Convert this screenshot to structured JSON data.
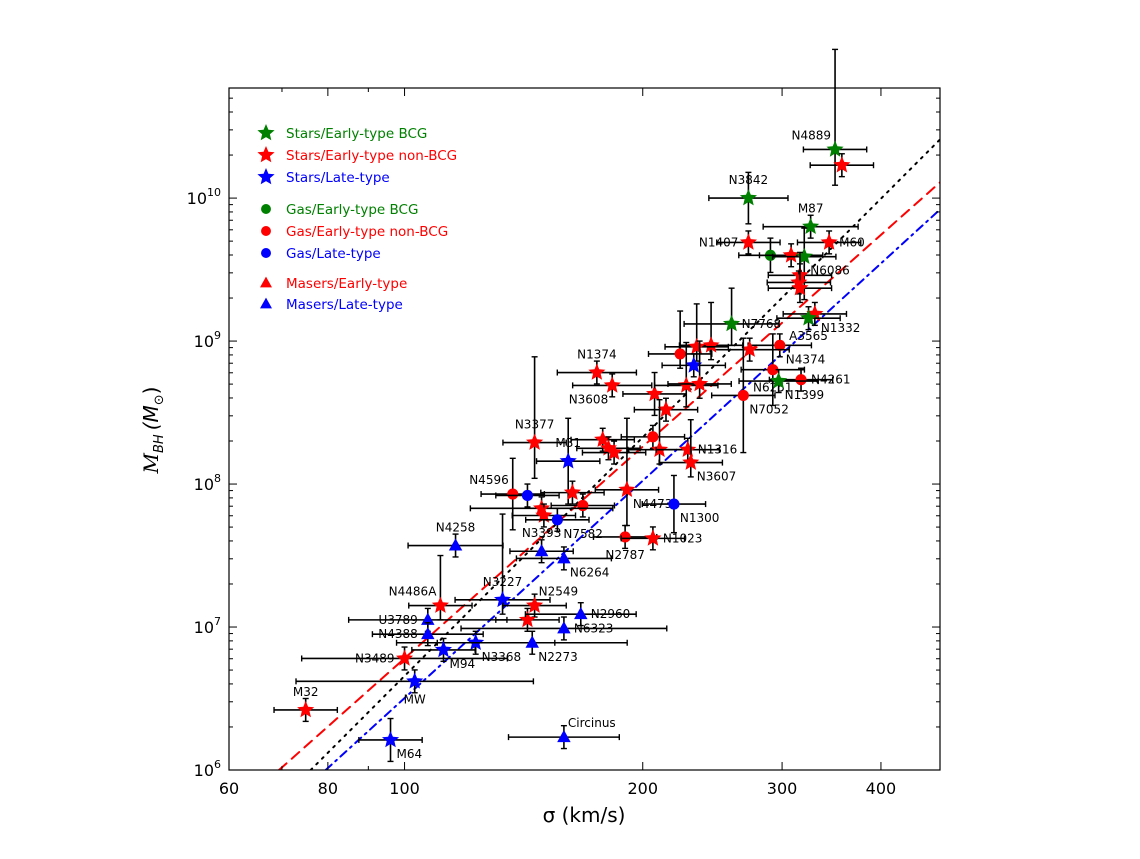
{
  "chart_data": {
    "type": "scatter",
    "title": "",
    "xlabel": "σ (km/s)",
    "ylabel_main": "M",
    "ylabel_sub": "BH",
    "ylabel_unit": "(M",
    "ylabel_unit_close": ")",
    "ylabel_sun": "⊙",
    "xscale": "log",
    "yscale": "log",
    "xlim": [
      60,
      475
    ],
    "ylim_log10": [
      6,
      10.77
    ],
    "x_ticks": [
      60,
      80,
      100,
      200,
      300,
      400
    ],
    "x_tick_labels": [
      "60",
      "80",
      "100",
      "200",
      "300",
      "400"
    ],
    "y_ticks_log10": [
      6,
      7,
      8,
      9,
      10
    ],
    "y_tick_base": "10",
    "y_tick_exps": [
      "6",
      "7",
      "8",
      "9",
      "10"
    ],
    "grid": false,
    "legend_placement": "top-left",
    "colors": {
      "green": "#008000",
      "red": "#ff0000",
      "blue": "#0000ff"
    },
    "legend": [
      {
        "label": "Stars/Early-type BCG",
        "marker": "star",
        "color": "#008000"
      },
      {
        "label": "Stars/Early-type non-BCG",
        "marker": "star",
        "color": "#ff0000"
      },
      {
        "label": "Stars/Late-type",
        "marker": "star",
        "color": "#0000ff"
      },
      {
        "label": "Gas/Early-type BCG",
        "marker": "circle",
        "color": "#008000"
      },
      {
        "label": "Gas/Early-type non-BCG",
        "marker": "circle",
        "color": "#ff0000"
      },
      {
        "label": "Gas/Late-type",
        "marker": "circle",
        "color": "#0000ff"
      },
      {
        "label": "Masers/Early-type",
        "marker": "triangle",
        "color": "#ff0000"
      },
      {
        "label": "Masers/Late-type",
        "marker": "triangle",
        "color": "#0000ff"
      }
    ],
    "fits": [
      {
        "name": "early-type fit",
        "style": "dashed",
        "color": "#ff0000",
        "x": [
          69.4,
          475
        ],
        "logM": [
          6.0,
          10.11
        ]
      },
      {
        "name": "all fit",
        "style": "dotted",
        "color": "#000000",
        "x": [
          76.1,
          475
        ],
        "logM": [
          6.0,
          10.41
        ]
      },
      {
        "name": "late-type fit",
        "style": "dashdot",
        "color": "#0000ff",
        "x": [
          79.5,
          475
        ],
        "logM": [
          6.0,
          9.92
        ]
      }
    ],
    "default_err": {
      "sigma_dex": 0.04,
      "logM_dex": 0.08
    },
    "points": [
      {
        "label": "N4889",
        "sigma": 350,
        "logM": 10.34,
        "marker": "star",
        "color": "#008000",
        "pos": "top-left",
        "yerr": [
          0.7,
          0.25
        ]
      },
      {
        "label": "",
        "sigma": 357,
        "logM": 10.23,
        "marker": "star",
        "color": "#ff0000"
      },
      {
        "label": "N3842",
        "sigma": 272,
        "logM": 10.0,
        "marker": "star",
        "color": "#008000",
        "pos": "top",
        "yerr": [
          0.18,
          0.18
        ],
        "xerr": 0.05
      },
      {
        "label": "M87",
        "sigma": 326,
        "logM": 9.8,
        "marker": "star",
        "color": "#008000",
        "pos": "top",
        "xerr": 0.06
      },
      {
        "label": "N1407",
        "sigma": 272,
        "logM": 9.69,
        "marker": "star",
        "color": "#ff0000",
        "pos": "left"
      },
      {
        "label": "M60",
        "sigma": 344,
        "logM": 9.69,
        "marker": "star",
        "color": "#ff0000",
        "pos": "right"
      },
      {
        "label": "",
        "sigma": 290,
        "logM": 9.6,
        "marker": "circle",
        "color": "#008000",
        "yerr": [
          0.12,
          0.12
        ]
      },
      {
        "label": "",
        "sigma": 308,
        "logM": 9.6,
        "marker": "star",
        "color": "#ff0000"
      },
      {
        "label": "N6086",
        "sigma": 320,
        "logM": 9.59,
        "marker": "star",
        "color": "#008000",
        "pos": "bottom-right",
        "yerr": [
          0.2,
          0.3
        ]
      },
      {
        "label": "",
        "sigma": 316,
        "logM": 9.46,
        "marker": "star",
        "color": "#ff0000"
      },
      {
        "label": "",
        "sigma": 315,
        "logM": 9.41,
        "marker": "star",
        "color": "#ff0000"
      },
      {
        "label": "",
        "sigma": 316,
        "logM": 9.37,
        "marker": "star",
        "color": "#ff0000",
        "yerr": [
          0.25,
          0.1
        ]
      },
      {
        "label": "N7768",
        "sigma": 259,
        "logM": 9.12,
        "marker": "star",
        "color": "#008000",
        "pos": "right",
        "yerr": [
          0.25,
          0.15
        ],
        "xerr": 0.06
      },
      {
        "label": "N1332",
        "sigma": 330,
        "logM": 9.19,
        "marker": "star",
        "color": "#ff0000",
        "pos": "bottom-right"
      },
      {
        "label": "A3565",
        "sigma": 324,
        "logM": 9.16,
        "marker": "star",
        "color": "#008000",
        "pos": "bottom"
      },
      {
        "label": "N4374",
        "sigma": 298,
        "logM": 8.97,
        "marker": "circle",
        "color": "#ff0000",
        "pos": "bottom-right"
      },
      {
        "label": "",
        "sigma": 273,
        "logM": 8.94,
        "marker": "star",
        "color": "#ff0000",
        "xerr": 0.05
      },
      {
        "label": "",
        "sigma": 244,
        "logM": 8.97,
        "marker": "star",
        "color": "#ff0000",
        "yerr": [
          0.3,
          0.1
        ]
      },
      {
        "label": "",
        "sigma": 234,
        "logM": 8.96,
        "marker": "star",
        "color": "#ff0000",
        "yerr": [
          0.3,
          0.1
        ]
      },
      {
        "label": "",
        "sigma": 223,
        "logM": 8.91,
        "marker": "circle",
        "color": "#ff0000",
        "yerr": [
          0.3,
          0.1
        ]
      },
      {
        "label": "",
        "sigma": 232,
        "logM": 8.83,
        "marker": "star",
        "color": "#0000ff"
      },
      {
        "label": "N1374",
        "sigma": 175,
        "logM": 8.78,
        "marker": "star",
        "color": "#ff0000",
        "pos": "top",
        "xerr": 0.05
      },
      {
        "label": "N3608",
        "sigma": 183,
        "logM": 8.69,
        "marker": "star",
        "color": "#ff0000",
        "pos": "bottom-left",
        "xerr": 0.05
      },
      {
        "label": "",
        "sigma": 207,
        "logM": 8.63,
        "marker": "star",
        "color": "#ff0000",
        "yerr": [
          0.15,
          0.15
        ]
      },
      {
        "label": "",
        "sigma": 227,
        "logM": 8.69,
        "marker": "star",
        "color": "#ff0000",
        "yerr": [
          0.3,
          0.15
        ]
      },
      {
        "label": "",
        "sigma": 236,
        "logM": 8.7,
        "marker": "star",
        "color": "#ff0000",
        "yerr": [
          0.3,
          0.1
        ]
      },
      {
        "label": "",
        "sigma": 214,
        "logM": 8.52,
        "marker": "star",
        "color": "#ff0000"
      },
      {
        "label": "N6251",
        "sigma": 292,
        "logM": 8.8,
        "marker": "circle",
        "color": "#ff0000",
        "pos": "bottom",
        "yerr": [
          0.25,
          0.25
        ]
      },
      {
        "label": "N4261",
        "sigma": 317,
        "logM": 8.73,
        "marker": "circle",
        "color": "#ff0000",
        "pos": "right"
      },
      {
        "label": "N1399",
        "sigma": 297,
        "logM": 8.72,
        "marker": "star",
        "color": "#008000",
        "pos": "bottom-right",
        "xerr": 0.05
      },
      {
        "label": "N7052",
        "sigma": 268,
        "logM": 8.62,
        "marker": "circle",
        "color": "#ff0000",
        "pos": "bottom-right",
        "yerr": [
          0.4,
          0.4
        ]
      },
      {
        "label": "N3377",
        "sigma": 146,
        "logM": 8.29,
        "marker": "star",
        "color": "#ff0000",
        "pos": "top",
        "yerr": [
          0.6,
          0.25
        ]
      },
      {
        "label": "M31",
        "sigma": 161,
        "logM": 8.16,
        "marker": "star",
        "color": "#0000ff",
        "pos": "top",
        "yerr": [
          0.3,
          0.3
        ]
      },
      {
        "label": "",
        "sigma": 178,
        "logM": 8.31,
        "marker": "star",
        "color": "#ff0000"
      },
      {
        "label": "",
        "sigma": 181,
        "logM": 8.25,
        "marker": "star",
        "color": "#ff0000"
      },
      {
        "label": "",
        "sigma": 184,
        "logM": 8.22,
        "marker": "star",
        "color": "#ff0000"
      },
      {
        "label": "",
        "sigma": 206,
        "logM": 8.33,
        "marker": "circle",
        "color": "#ff0000"
      },
      {
        "label": "",
        "sigma": 210,
        "logM": 8.24,
        "marker": "star",
        "color": "#ff0000",
        "yerr": [
          0.35,
          0.1
        ]
      },
      {
        "label": "N1316",
        "sigma": 228,
        "logM": 8.24,
        "marker": "star",
        "color": "#ff0000",
        "pos": "right"
      },
      {
        "label": "N3607",
        "sigma": 230,
        "logM": 8.15,
        "marker": "star",
        "color": "#ff0000",
        "pos": "bottom-right",
        "yerr": [
          0.3,
          0.1
        ]
      },
      {
        "label": "N4596",
        "sigma": 137,
        "logM": 7.93,
        "marker": "circle",
        "color": "#ff0000",
        "pos": "top-left",
        "yerr": [
          0.25,
          0.25
        ]
      },
      {
        "label": "",
        "sigma": 143,
        "logM": 7.92,
        "marker": "circle",
        "color": "#0000ff"
      },
      {
        "label": "",
        "sigma": 163,
        "logM": 7.94,
        "marker": "star",
        "color": "#ff0000"
      },
      {
        "label": "",
        "sigma": 168,
        "logM": 7.85,
        "marker": "circle",
        "color": "#ff0000"
      },
      {
        "label": "N4473",
        "sigma": 191,
        "logM": 7.96,
        "marker": "star",
        "color": "#ff0000",
        "pos": "bottom-right",
        "yerr": [
          0.5,
          0.25
        ]
      },
      {
        "label": "N1300",
        "sigma": 219,
        "logM": 7.86,
        "marker": "circle",
        "color": "#0000ff",
        "pos": "bottom-right",
        "yerr": [
          0.2,
          0.2
        ]
      },
      {
        "label": "",
        "sigma": 149,
        "logM": 7.83,
        "marker": "star",
        "color": "#ff0000",
        "xerr": 0.09
      },
      {
        "label": "",
        "sigma": 150,
        "logM": 7.78,
        "marker": "star",
        "color": "#ff0000"
      },
      {
        "label": "N7582",
        "sigma": 156,
        "logM": 7.75,
        "marker": "circle",
        "color": "#0000ff",
        "pos": "bottom-right"
      },
      {
        "label": "N2787",
        "sigma": 190,
        "logM": 7.63,
        "marker": "circle",
        "color": "#ff0000",
        "pos": "bottom"
      },
      {
        "label": "N1023",
        "sigma": 206,
        "logM": 7.62,
        "marker": "star",
        "color": "#ff0000",
        "pos": "right"
      },
      {
        "label": "N4258",
        "sigma": 116,
        "logM": 7.57,
        "marker": "triangle",
        "color": "#0000ff",
        "pos": "top",
        "xerr": 0.06
      },
      {
        "label": "N3393",
        "sigma": 149,
        "logM": 7.53,
        "marker": "triangle",
        "color": "#0000ff",
        "pos": "top"
      },
      {
        "label": "N6264",
        "sigma": 159,
        "logM": 7.48,
        "marker": "triangle",
        "color": "#0000ff",
        "pos": "bottom-right",
        "xerr": 0.06
      },
      {
        "label": "N3227",
        "sigma": 133,
        "logM": 7.19,
        "marker": "star",
        "color": "#0000ff",
        "pos": "top",
        "xerr": 0.06,
        "yerr": [
          0.6,
          0.1
        ]
      },
      {
        "label": "N2549",
        "sigma": 146,
        "logM": 7.15,
        "marker": "star",
        "color": "#ff0000",
        "pos": "top-right"
      },
      {
        "label": "",
        "sigma": 143,
        "logM": 7.05,
        "marker": "star",
        "color": "#ff0000"
      },
      {
        "label": "N4486A",
        "sigma": 111,
        "logM": 7.15,
        "marker": "star",
        "color": "#ff0000",
        "pos": "top-left",
        "yerr": [
          0.35,
          0.1
        ]
      },
      {
        "label": "U3789",
        "sigma": 107,
        "logM": 7.05,
        "marker": "triangle",
        "color": "#0000ff",
        "pos": "left",
        "xerr": 0.1
      },
      {
        "label": "N2960",
        "sigma": 167,
        "logM": 7.09,
        "marker": "triangle",
        "color": "#0000ff",
        "pos": "right",
        "xerr": 0.07
      },
      {
        "label": "N6323",
        "sigma": 159,
        "logM": 6.99,
        "marker": "triangle",
        "color": "#0000ff",
        "pos": "right",
        "xerr": 0.13
      },
      {
        "label": "N4388",
        "sigma": 107,
        "logM": 6.95,
        "marker": "triangle",
        "color": "#0000ff",
        "pos": "left",
        "xerr": 0.07
      },
      {
        "label": "N3368",
        "sigma": 123,
        "logM": 6.89,
        "marker": "star",
        "color": "#0000ff",
        "pos": "bottom-right",
        "xerr": 0.1
      },
      {
        "label": "N2273",
        "sigma": 145,
        "logM": 6.89,
        "marker": "triangle",
        "color": "#0000ff",
        "pos": "bottom-right",
        "xerr": 0.12
      },
      {
        "label": "M94",
        "sigma": 112,
        "logM": 6.84,
        "marker": "star",
        "color": "#0000ff",
        "pos": "bottom-right"
      },
      {
        "label": "N3489",
        "sigma": 100,
        "logM": 6.78,
        "marker": "star",
        "color": "#ff0000",
        "pos": "left",
        "xerr": 0.13
      },
      {
        "label": "MW",
        "sigma": 103,
        "logM": 6.62,
        "marker": "star",
        "color": "#0000ff",
        "pos": "bottom",
        "xerr": 0.15
      },
      {
        "label": "M32",
        "sigma": 75,
        "logM": 6.42,
        "marker": "star",
        "color": "#ff0000",
        "pos": "top"
      },
      {
        "label": "M64",
        "sigma": 96,
        "logM": 6.21,
        "marker": "star",
        "color": "#0000ff",
        "pos": "bottom-right",
        "yerr": [
          0.15,
          0.15
        ]
      },
      {
        "label": "Circinus",
        "sigma": 159,
        "logM": 6.23,
        "marker": "triangle",
        "color": "#0000ff",
        "pos": "top-right",
        "xerr": 0.07
      }
    ]
  }
}
